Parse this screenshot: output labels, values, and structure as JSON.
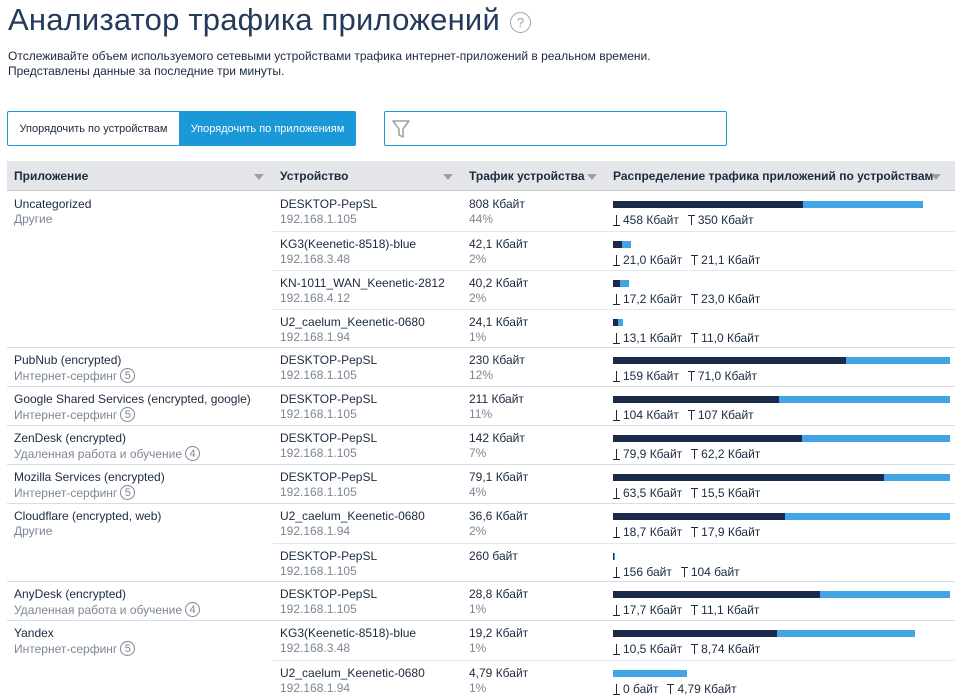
{
  "page": {
    "title": "Анализатор трафика приложений",
    "help_glyph": "?",
    "description_line1": "Отслеживайте объем используемого сетевыми устройствами трафика интернет-приложений в реальном времени.",
    "description_line2": "Представлены данные за последние три минуты."
  },
  "tabs": {
    "by_device": "Упорядочить по устройствам",
    "by_app": "Упорядочить по приложениям",
    "active": "by_app"
  },
  "filter": {
    "value": "",
    "placeholder": ""
  },
  "columns": {
    "app": "Приложение",
    "device": "Устройство",
    "traffic": "Трафик устройства",
    "distribution": "Распределение трафика приложений по устройствам"
  },
  "colors": {
    "download": "#1b2a4a",
    "upload": "#41a4e6",
    "accent": "#1a98d8"
  },
  "apps": [
    {
      "name": "Uncategorized",
      "category": "Другие",
      "badge": "",
      "devices": [
        {
          "name": "DESKTOP-PepSL",
          "ip": "192.168.1.105",
          "traffic": "808 Кбайт",
          "pct": "44%",
          "down": "458 Кбайт",
          "up": "350 Кбайт",
          "bar_down_frac": 0.564,
          "bar_up_frac": 0.356
        },
        {
          "name": "KG3(Keenetic-8518)-blue",
          "ip": "192.168.3.48",
          "traffic": "42,1 Кбайт",
          "pct": "2%",
          "down": "21,0 Кбайт",
          "up": "21,1 Кбайт",
          "bar_down_frac": 0.026,
          "bar_up_frac": 0.026
        },
        {
          "name": "KN-1011_WAN_Keenetic-2812",
          "ip": "192.168.4.12",
          "traffic": "40,2 Кбайт",
          "pct": "2%",
          "down": "17,2 Кбайт",
          "up": "23,0 Кбайт",
          "bar_down_frac": 0.021,
          "bar_up_frac": 0.028
        },
        {
          "name": "U2_caelum_Keenetic-0680",
          "ip": "192.168.1.94",
          "traffic": "24,1 Кбайт",
          "pct": "1%",
          "down": "13,1 Кбайт",
          "up": "11,0 Кбайт",
          "bar_down_frac": 0.016,
          "bar_up_frac": 0.014
        }
      ]
    },
    {
      "name": "PubNub (encrypted)",
      "category": "Интернет-серфинг",
      "badge": "5",
      "devices": [
        {
          "name": "DESKTOP-PepSL",
          "ip": "192.168.1.105",
          "traffic": "230 Кбайт",
          "pct": "12%",
          "down": "159 Кбайт",
          "up": "71,0 Кбайт",
          "bar_down_frac": 0.69,
          "bar_up_frac": 0.31
        }
      ]
    },
    {
      "name": "Google Shared Services (encrypted, google)",
      "category": "Интернет-серфинг",
      "badge": "5",
      "devices": [
        {
          "name": "DESKTOP-PepSL",
          "ip": "192.168.1.105",
          "traffic": "211 Кбайт",
          "pct": "11%",
          "down": "104 Кбайт",
          "up": "107 Кбайт",
          "bar_down_frac": 0.493,
          "bar_up_frac": 0.507
        }
      ]
    },
    {
      "name": "ZenDesk (encrypted)",
      "category": "Удаленная работа и обучение",
      "badge": "4",
      "devices": [
        {
          "name": "DESKTOP-PepSL",
          "ip": "192.168.1.105",
          "traffic": "142 Кбайт",
          "pct": "7%",
          "down": "79,9 Кбайт",
          "up": "62,2 Кбайт",
          "bar_down_frac": 0.562,
          "bar_up_frac": 0.438
        }
      ]
    },
    {
      "name": "Mozilla Services (encrypted)",
      "category": "Интернет-серфинг",
      "badge": "5",
      "devices": [
        {
          "name": "DESKTOP-PepSL",
          "ip": "192.168.1.105",
          "traffic": "79,1 Кбайт",
          "pct": "4%",
          "down": "63,5 Кбайт",
          "up": "15,5 Кбайт",
          "bar_down_frac": 0.804,
          "bar_up_frac": 0.196
        }
      ]
    },
    {
      "name": "Cloudflare (encrypted, web)",
      "category": "Другие",
      "badge": "",
      "devices": [
        {
          "name": "U2_caelum_Keenetic-0680",
          "ip": "192.168.1.94",
          "traffic": "36,6 Кбайт",
          "pct": "2%",
          "down": "18,7 Кбайт",
          "up": "17,9 Кбайт",
          "bar_down_frac": 0.51,
          "bar_up_frac": 0.49
        },
        {
          "name": "DESKTOP-PepSL",
          "ip": "192.168.1.105",
          "traffic": "260 байт",
          "pct": "",
          "down": "156 байт",
          "up": "104 байт",
          "bar_down_frac": 0.004,
          "bar_up_frac": 0.003
        }
      ]
    },
    {
      "name": "AnyDesk (encrypted)",
      "category": "Удаленная работа и обучение",
      "badge": "4",
      "devices": [
        {
          "name": "DESKTOP-PepSL",
          "ip": "192.168.1.105",
          "traffic": "28,8 Кбайт",
          "pct": "1%",
          "down": "17,7 Кбайт",
          "up": "11,1 Кбайт",
          "bar_down_frac": 0.615,
          "bar_up_frac": 0.385
        }
      ]
    },
    {
      "name": "Yandex",
      "category": "Интернет-серфинг",
      "badge": "5",
      "devices": [
        {
          "name": "KG3(Keenetic-8518)-blue",
          "ip": "192.168.3.48",
          "traffic": "19,2 Кбайт",
          "pct": "1%",
          "down": "10,5 Кбайт",
          "up": "8,74 Кбайт",
          "bar_down_frac": 0.488,
          "bar_up_frac": 0.41
        },
        {
          "name": "U2_caelum_Keenetic-0680",
          "ip": "192.168.1.94",
          "traffic": "4,79 Кбайт",
          "pct": "1%",
          "down": "0 байт",
          "up": "4,79 Кбайт",
          "bar_down_frac": 0.0,
          "bar_up_frac": 0.22
        }
      ]
    }
  ]
}
